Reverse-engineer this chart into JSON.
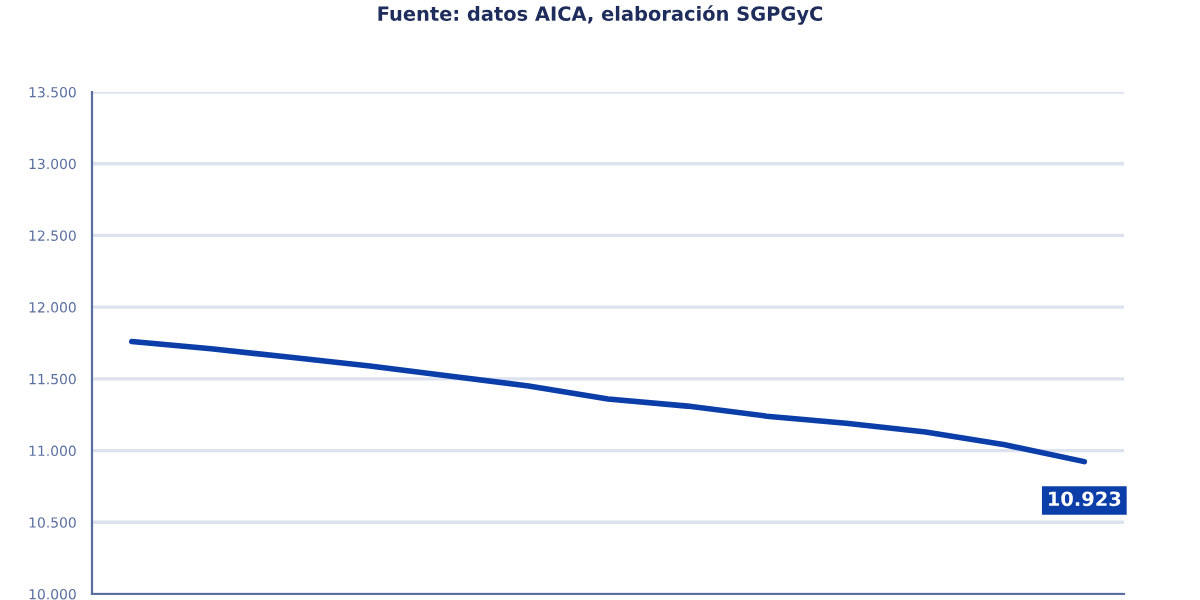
{
  "chart_data": {
    "type": "line",
    "subtitle": "Fuente: datos AICA, elaboración SGPGyC",
    "categories": [
      null,
      null,
      null,
      null,
      null,
      null,
      null,
      null,
      null,
      null,
      null,
      null,
      null
    ],
    "series": [
      {
        "color": "#0b3ea8",
        "values": [
          11760,
          11710,
          11650,
          11590,
          11520,
          11450,
          11360,
          11310,
          11240,
          11190,
          11130,
          11040,
          10923
        ],
        "value_labels": [
          null,
          null,
          null,
          null,
          null,
          null,
          null,
          null,
          null,
          null,
          null,
          null,
          "10.923"
        ]
      }
    ],
    "ylim": [
      10000,
      13500
    ],
    "yticks": [
      {
        "value": 10000,
        "label": "10.000"
      },
      {
        "value": 10500,
        "label": "10.500"
      },
      {
        "value": 11000,
        "label": "11.000"
      },
      {
        "value": 11500,
        "label": "11.500"
      },
      {
        "value": 12000,
        "label": "12.000"
      },
      {
        "value": 12500,
        "label": "12.500"
      },
      {
        "value": 13000,
        "label": "13.000"
      },
      {
        "value": 13500,
        "label": "13.500"
      }
    ],
    "grid": "y",
    "marker": "none",
    "line_style": "solid",
    "legend": false
  }
}
